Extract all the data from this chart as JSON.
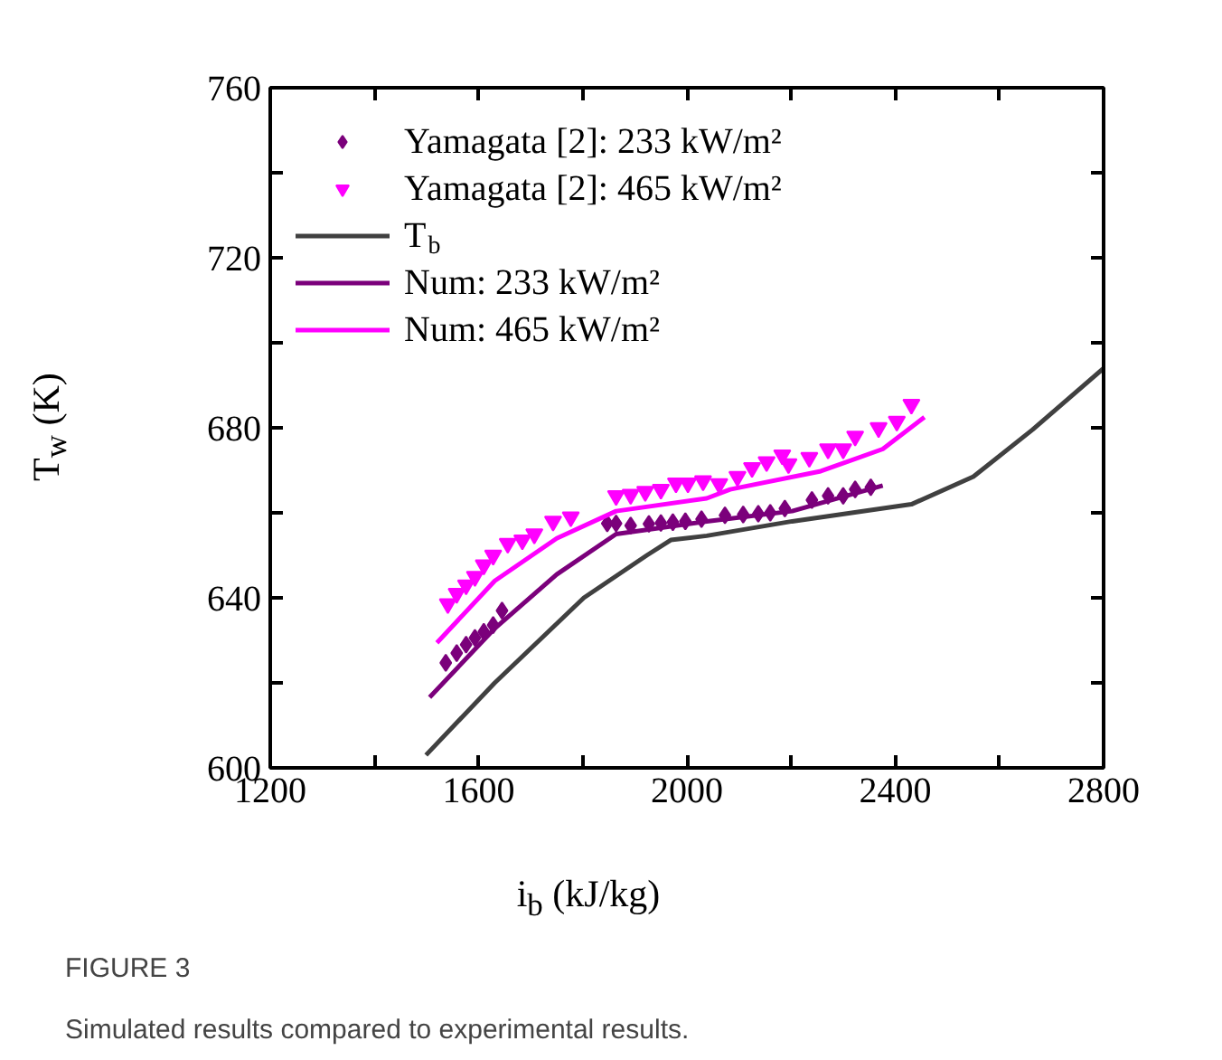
{
  "chart_data": {
    "type": "line",
    "xlabel": "i$_{b}$ (kJ/kg)",
    "ylabel": "T$_{w}$ (K)",
    "annotations": [
      "FIGURE 3",
      "Simulated results compared to experimental results."
    ],
    "xlim": [
      1200,
      2800
    ],
    "ylim": [
      600,
      760
    ],
    "xticks": [
      1200,
      {
        "value": 1400,
        "label": null
      },
      1600,
      {
        "value": 1800,
        "label": null
      },
      2000,
      {
        "value": 2200,
        "label": null
      },
      2400,
      {
        "value": 2600,
        "label": null
      },
      2800
    ],
    "yticks": [
      600,
      {
        "value": 620,
        "label": null
      },
      640,
      {
        "value": 660,
        "label": null
      },
      680,
      {
        "value": 700,
        "label": null
      },
      720,
      {
        "value": 740,
        "label": null
      },
      760
    ],
    "grid": false,
    "legend": "top left",
    "series": [
      {
        "name": "Yamagata [2]: 233 kW/m²",
        "type": "scatter",
        "marker": "diamond",
        "color": "#7b007b",
        "x": [
          1537,
          1558,
          1576,
          1593,
          1610,
          1628,
          1645,
          1847,
          1864,
          1892,
          1927,
          1950,
          1973,
          1997,
          2028,
          2073,
          2108,
          2137,
          2160,
          2188,
          2240,
          2271,
          2300,
          2323,
          2353
        ],
        "values": [
          624.7,
          627,
          629,
          630.6,
          632,
          633.6,
          637,
          657.5,
          657.5,
          657,
          657.4,
          657.6,
          657.8,
          658,
          658.5,
          659.4,
          659.6,
          659.8,
          660,
          661,
          663,
          664,
          664,
          665.5,
          666
        ]
      },
      {
        "name": "Yamagata [2]: 465 kW/m²",
        "type": "scatter",
        "marker": "triangle",
        "color": "#ff00ff",
        "x": [
          1541,
          1558,
          1576,
          1593,
          1610,
          1628,
          1656,
          1684,
          1707,
          1743,
          1777,
          1864,
          1892,
          1920,
          1950,
          1979,
          2002,
          2031,
          2062,
          2097,
          2125,
          2153,
          2183,
          2195,
          2235,
          2271,
          2300,
          2323,
          2368,
          2403,
          2431
        ],
        "values": [
          638.6,
          641,
          643,
          645,
          647.7,
          650,
          652.8,
          653.6,
          655,
          658,
          659,
          664,
          664.3,
          665,
          665.5,
          667,
          667,
          667.5,
          666.8,
          668.5,
          670.6,
          672,
          673.6,
          671.5,
          673,
          675,
          675,
          678,
          680,
          681.5,
          685.5
        ]
      },
      {
        "name": "T$_{b}$",
        "marker": "none",
        "color": "#404040",
        "x": [
          1499,
          1631,
          1802,
          1923,
          1969,
          2038,
          2202,
          2431,
          2550,
          2664,
          2800
        ],
        "values": [
          603,
          620,
          640,
          650,
          653.6,
          654.6,
          658,
          662,
          668.5,
          679.6,
          694
        ]
      },
      {
        "name": "Num: 233 kW/m²",
        "marker": "none",
        "color": "#7b007b",
        "x": [
          1506,
          1631,
          1750,
          1864,
          2038,
          2202,
          2376
        ],
        "values": [
          616.6,
          632.8,
          645.5,
          655,
          658,
          660.4,
          666.4
        ]
      },
      {
        "name": "Num: 465 kW/m²",
        "marker": "none",
        "color": "#ff00ff",
        "x": [
          1520,
          1631,
          1750,
          1864,
          2038,
          2083,
          2257,
          2376,
          2456
        ],
        "values": [
          629.4,
          644,
          654,
          660.4,
          663.4,
          665.5,
          669.8,
          675,
          682.5
        ]
      }
    ]
  }
}
